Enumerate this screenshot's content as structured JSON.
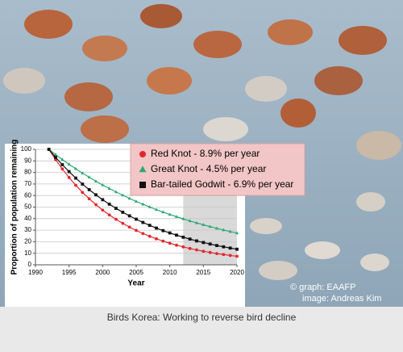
{
  "chart_data": {
    "type": "line",
    "x": [
      1992,
      1993,
      1994,
      1995,
      1996,
      1997,
      1998,
      1999,
      2000,
      2001,
      2002,
      2003,
      2004,
      2005,
      2006,
      2007,
      2008,
      2009,
      2010,
      2011,
      2012,
      2013,
      2014,
      2015,
      2016,
      2017,
      2018,
      2019,
      2020
    ],
    "series": [
      {
        "name": "Red Knot - 8.9% per year",
        "color": "#e3262b",
        "marker": "circle",
        "values": [
          100,
          91.1,
          83.0,
          75.6,
          68.9,
          62.7,
          57.2,
          52.1,
          47.4,
          43.2,
          39.4,
          35.9,
          32.7,
          29.8,
          27.1,
          24.7,
          22.5,
          20.5,
          18.7,
          17.0,
          15.5,
          14.1,
          12.9,
          11.7,
          10.7,
          9.7,
          8.9,
          8.1,
          7.4
        ]
      },
      {
        "name": "Great Knot - 4.5% per year",
        "color": "#2fa872",
        "marker": "triangle",
        "values": [
          100,
          95.5,
          91.2,
          87.1,
          83.2,
          79.4,
          75.9,
          72.4,
          69.2,
          66.1,
          63.1,
          60.3,
          57.5,
          54.9,
          52.5,
          50.1,
          47.8,
          45.7,
          43.6,
          41.7,
          39.8,
          38.0,
          36.3,
          34.7,
          33.1,
          31.6,
          30.2,
          28.8,
          27.5
        ]
      },
      {
        "name": "Bar-tailed Godwit - 6.9% per year",
        "color": "#111111",
        "marker": "square",
        "values": [
          100,
          93.1,
          86.7,
          80.7,
          75.1,
          69.9,
          65.1,
          60.6,
          56.4,
          52.5,
          48.9,
          45.5,
          42.4,
          39.5,
          36.7,
          34.2,
          31.8,
          29.6,
          27.6,
          25.7,
          23.9,
          22.3,
          20.7,
          19.3,
          18.0,
          16.7,
          15.6,
          14.5,
          13.5
        ]
      }
    ],
    "xlabel": "Year",
    "ylabel": "Proportion of population remaining",
    "xlim": [
      1990,
      2020
    ],
    "xticks": [
      1990,
      1995,
      2000,
      2005,
      2010,
      2015,
      2020
    ],
    "ylim": [
      0,
      100
    ],
    "yticks": [
      0,
      10,
      20,
      30,
      40,
      50,
      60,
      70,
      80,
      90,
      100
    ],
    "grid": true,
    "shaded_xlim": [
      2012,
      2020
    ]
  },
  "credits": [
    "© graph: EAAFP",
    "image: Andreas Kim"
  ],
  "caption": "Birds Korea: Working to reverse bird decline"
}
